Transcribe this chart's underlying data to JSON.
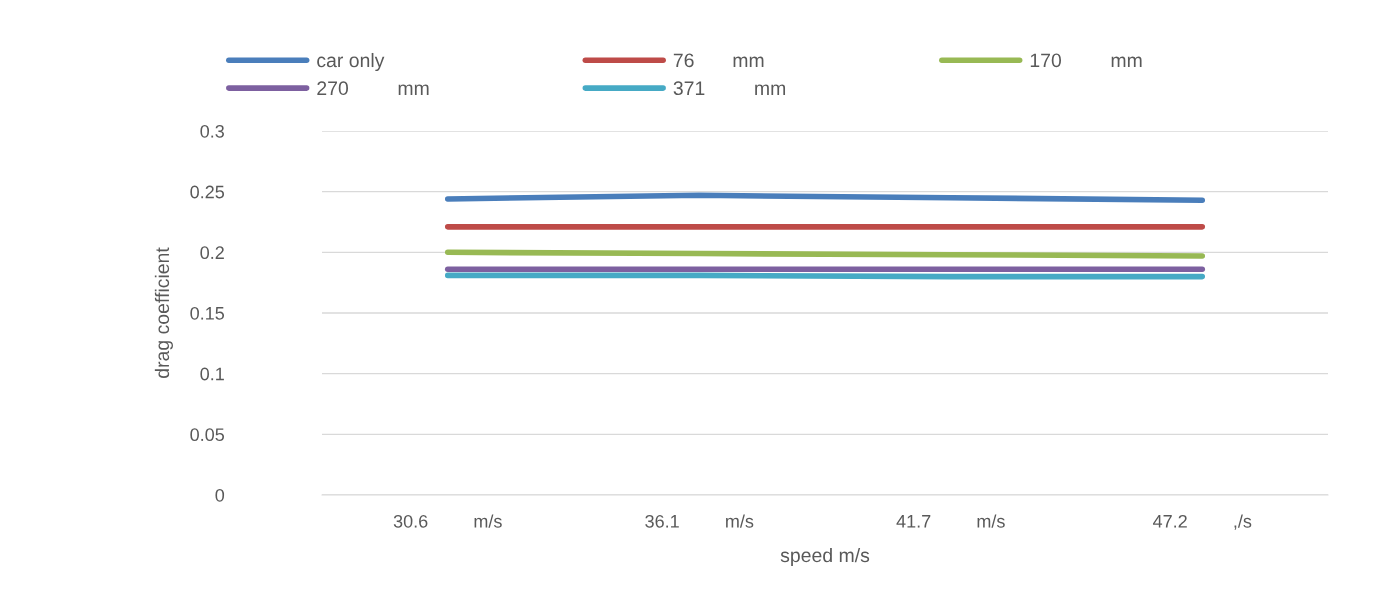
{
  "chart_data": {
    "type": "line",
    "xlabel": "speed m/s",
    "ylabel": "drag coefficient",
    "categories": [
      "30.6         m/s",
      "36.1         m/s",
      "41.7         m/s",
      "47.2         ,/s"
    ],
    "series": [
      {
        "name": "car only",
        "color": "#4a7ebb",
        "values": [
          0.244,
          0.247,
          0.245,
          0.243
        ]
      },
      {
        "name": "76       mm",
        "color": "#be4b48",
        "values": [
          0.221,
          0.221,
          0.221,
          0.221
        ]
      },
      {
        "name": "170         mm",
        "color": "#98b954",
        "values": [
          0.2,
          0.199,
          0.198,
          0.197
        ]
      },
      {
        "name": "270         mm",
        "color": "#7d60a0",
        "values": [
          0.186,
          0.186,
          0.186,
          0.186
        ]
      },
      {
        "name": "371         mm",
        "color": "#46aac5",
        "values": [
          0.181,
          0.181,
          0.18,
          0.18
        ]
      }
    ],
    "ylim": [
      0,
      0.3
    ],
    "yticks": [
      0,
      0.05,
      0.1,
      0.15,
      0.2,
      0.25,
      0.3
    ],
    "grid": "y",
    "legend": "top",
    "marker": "none",
    "line_style": "solid"
  }
}
